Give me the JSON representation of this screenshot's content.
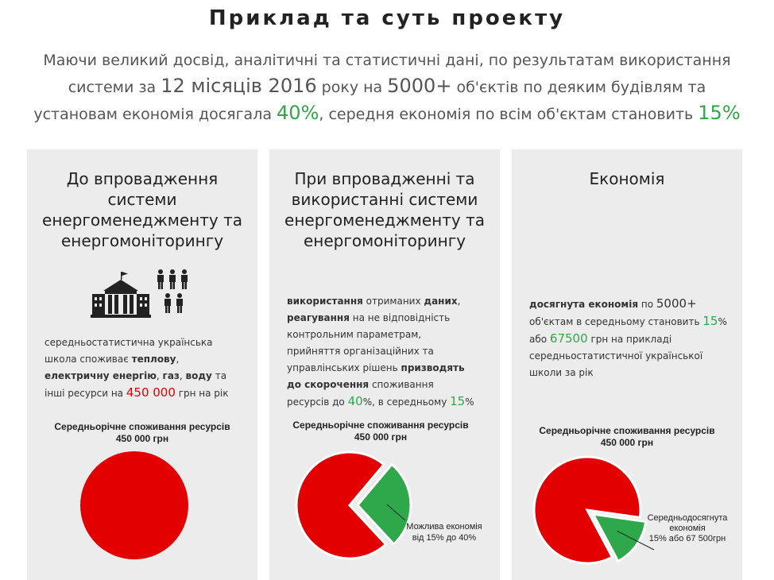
{
  "header": {
    "title": "Приклад та суть проекту",
    "intro": {
      "p1": "Маючи великий досвід, аналітичні та статистичні дані, по результатам використання системи за ",
      "months": "12 місяців 2016",
      "p2": " року на ",
      "objects": "5000+",
      "p3": " об'єктів по деяким будівлям та установам економія досягала ",
      "max_saving": "40%",
      "p4": ", середня економія по всім об'єктам становить ",
      "avg_saving": "15%"
    }
  },
  "colors": {
    "red": "#e30000",
    "green": "#2ea84a",
    "card_bg": "#ececec"
  },
  "cards": [
    {
      "heading": "До впровадження системи енергоменеджменту та енергомоніторингу",
      "icons": [
        "building-icon",
        "people-icon"
      ],
      "desc": {
        "t1": "середньостатистична українська школа споживає ",
        "b1": "теплову",
        "t2": ", ",
        "b2": "електричну енергію",
        "t3": ", ",
        "b3": "газ",
        "t4": ", ",
        "b4": "воду",
        "t5": " та інші ресурси на ",
        "amount": "450 000",
        "t6": " грн на рік"
      },
      "pie_title": "Середньорічне споживання ресурсів",
      "pie_sub": "450 000 грн",
      "pie_saving_fraction": 0
    },
    {
      "heading": "При впровадженні та використанні системи енергоменеджменту та енергомоніторингу",
      "desc": {
        "b1": "використання",
        "t1": " отриманих ",
        "b2": "даних",
        "t2": ",",
        "b3": "реагування",
        "t3": " на не відповідність контрольним параметрам, прийняття організаційних та управлінських рішень ",
        "b4": "призводять до скорочення",
        "t4": " споживання ресурсів до ",
        "pct1": "40",
        "t5": "%, в середньому ",
        "pct2": "15",
        "t6": "%"
      },
      "pie_title": "Середньорічне споживання ресурсів",
      "pie_sub": "450 000 грн",
      "pie_saving_fraction": 0.27,
      "pie_label": [
        "Можлива економія",
        "від 15% до 40%"
      ]
    },
    {
      "heading": "Економія",
      "desc": {
        "b1": "досягнута економія",
        "t1": " по ",
        "objects": "5000+",
        "t2": " об'єктам в середньому становить ",
        "pct": "15",
        "t3": "% або ",
        "amount": "67500",
        "t4": " грн на прикладі середньостатистичної української школи за рік"
      },
      "pie_title": "Середньорічне споживання ресурсів",
      "pie_sub": "450 000 грн",
      "pie_saving_fraction": 0.15,
      "pie_label": [
        "Середньодосягнута",
        "економія",
        "15% або 67 500грн"
      ]
    }
  ]
}
